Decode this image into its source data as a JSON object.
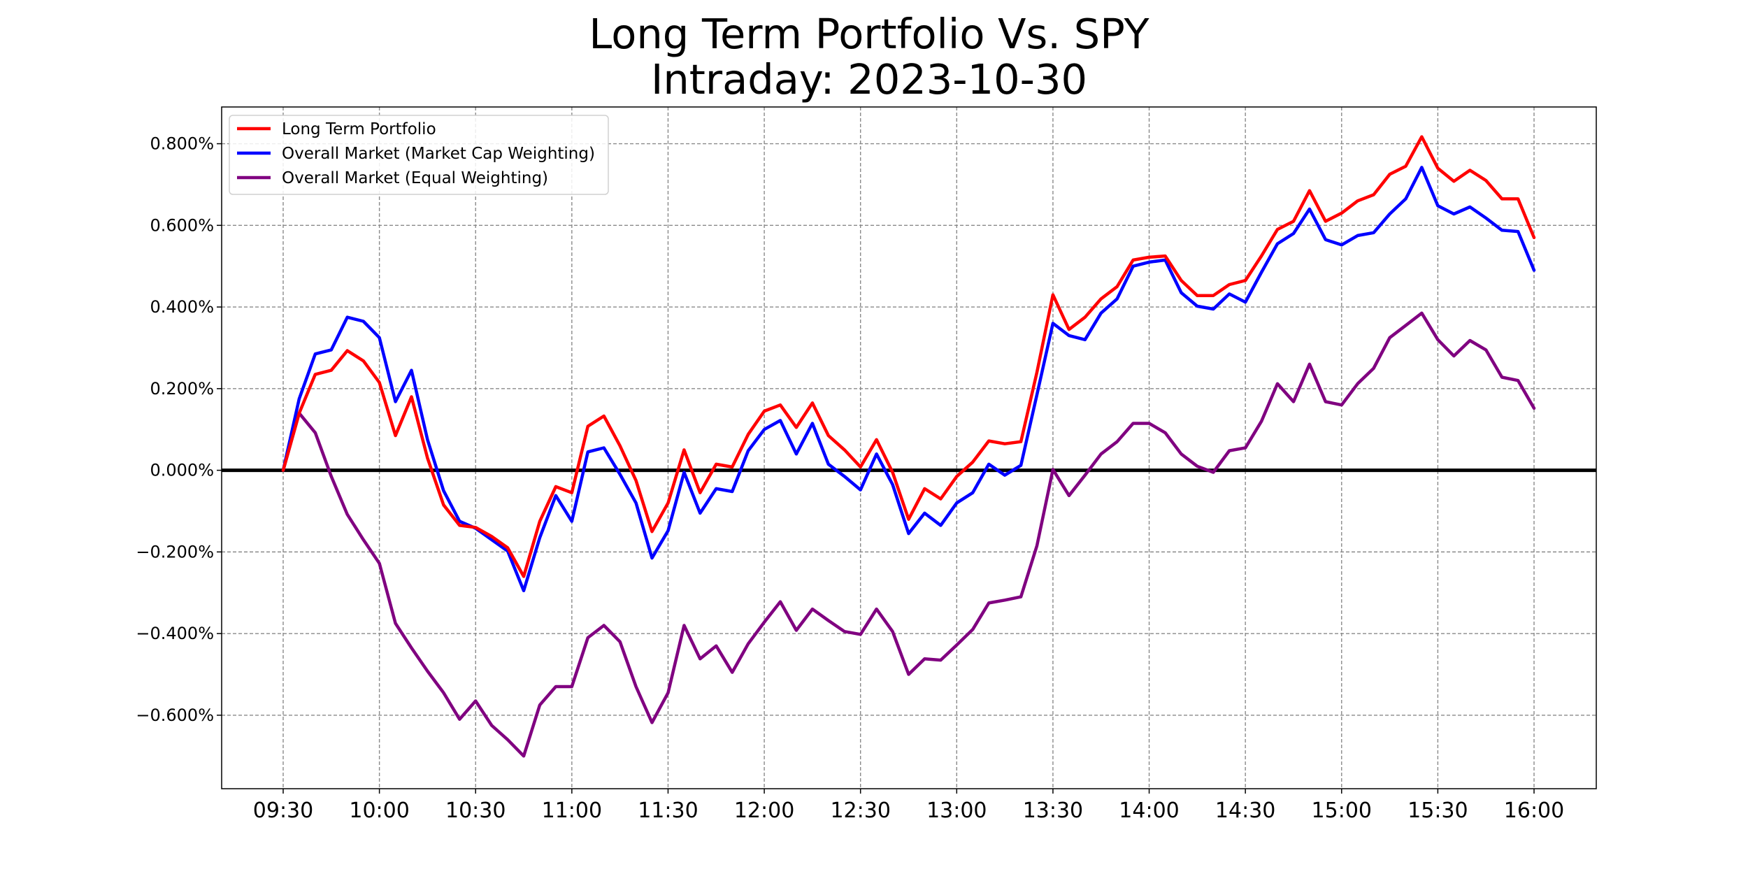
{
  "chart_data": {
    "type": "line",
    "title": [
      "Long Term Portfolio Vs. SPY",
      "Intraday: 2023-10-30"
    ],
    "xlabel": "",
    "ylabel": "",
    "ylim": [
      -0.78,
      0.89
    ],
    "grid": true,
    "legend_position": "upper-left",
    "x_ticks": [
      "09:30",
      "10:00",
      "10:30",
      "11:00",
      "11:30",
      "12:00",
      "12:30",
      "13:00",
      "13:30",
      "14:00",
      "14:30",
      "15:00",
      "15:30",
      "16:00"
    ],
    "y_ticks": [
      {
        "value": 0.8,
        "label": "0.800%"
      },
      {
        "value": 0.6,
        "label": "0.600%"
      },
      {
        "value": 0.4,
        "label": "0.400%"
      },
      {
        "value": 0.2,
        "label": "0.200%"
      },
      {
        "value": 0.0,
        "label": "0.000%"
      },
      {
        "value": -0.2,
        "label": "−0.200%"
      },
      {
        "value": -0.4,
        "label": "−0.400%"
      },
      {
        "value": -0.6,
        "label": "−0.600%"
      }
    ],
    "baseline": 0,
    "interval_minutes": 5,
    "start_time": "09:30",
    "series": [
      {
        "name": "Long Term Portfolio",
        "color": "#ff0000",
        "values": [
          0.0,
          0.14,
          0.235,
          0.245,
          0.293,
          0.268,
          0.215,
          0.085,
          0.18,
          0.03,
          -0.085,
          -0.135,
          -0.14,
          -0.162,
          -0.19,
          -0.26,
          -0.125,
          -0.04,
          -0.055,
          0.108,
          0.133,
          0.06,
          -0.025,
          -0.15,
          -0.08,
          0.05,
          -0.055,
          0.015,
          0.008,
          0.088,
          0.145,
          0.16,
          0.105,
          0.165,
          0.085,
          0.05,
          0.008,
          0.075,
          -0.005,
          -0.12,
          -0.045,
          -0.07,
          -0.015,
          0.02,
          0.072,
          0.065,
          0.07,
          0.24,
          0.43,
          0.345,
          0.375,
          0.42,
          0.45,
          0.515,
          0.522,
          0.525,
          0.465,
          0.428,
          0.428,
          0.455,
          0.465,
          0.525,
          0.59,
          0.61,
          0.685,
          0.61,
          0.63,
          0.66,
          0.675,
          0.725,
          0.745,
          0.817,
          0.74,
          0.708,
          0.735,
          0.71,
          0.665,
          0.665,
          0.57
        ]
      },
      {
        "name": "Overall Market (Market Cap Weighting)",
        "color": "#0000ff",
        "values": [
          0.0,
          0.175,
          0.285,
          0.295,
          0.375,
          0.365,
          0.325,
          0.168,
          0.245,
          0.075,
          -0.05,
          -0.125,
          -0.142,
          -0.17,
          -0.198,
          -0.295,
          -0.165,
          -0.062,
          -0.125,
          0.045,
          0.055,
          -0.01,
          -0.08,
          -0.215,
          -0.148,
          -0.005,
          -0.105,
          -0.045,
          -0.052,
          0.048,
          0.1,
          0.122,
          0.04,
          0.115,
          0.015,
          -0.015,
          -0.048,
          0.04,
          -0.035,
          -0.155,
          -0.105,
          -0.135,
          -0.08,
          -0.055,
          0.015,
          -0.012,
          0.012,
          0.185,
          0.36,
          0.33,
          0.32,
          0.385,
          0.42,
          0.5,
          0.51,
          0.515,
          0.435,
          0.402,
          0.395,
          0.432,
          0.412,
          0.485,
          0.555,
          0.58,
          0.64,
          0.565,
          0.552,
          0.575,
          0.582,
          0.628,
          0.665,
          0.742,
          0.648,
          0.628,
          0.645,
          0.618,
          0.588,
          0.585,
          0.49
        ]
      },
      {
        "name": "Overall Market (Equal Weighting)",
        "color": "#800080",
        "values": [
          0.0,
          0.14,
          0.092,
          -0.015,
          -0.108,
          -0.17,
          -0.228,
          -0.375,
          -0.435,
          -0.492,
          -0.545,
          -0.61,
          -0.565,
          -0.625,
          -0.66,
          -0.7,
          -0.575,
          -0.53,
          -0.53,
          -0.41,
          -0.38,
          -0.42,
          -0.53,
          -0.618,
          -0.545,
          -0.38,
          -0.462,
          -0.43,
          -0.495,
          -0.425,
          -0.372,
          -0.322,
          -0.392,
          -0.34,
          -0.368,
          -0.395,
          -0.402,
          -0.34,
          -0.395,
          -0.5,
          -0.462,
          -0.465,
          -0.428,
          -0.39,
          -0.325,
          -0.318,
          -0.31,
          -0.185,
          0.002,
          -0.062,
          -0.012,
          0.04,
          0.07,
          0.115,
          0.115,
          0.092,
          0.04,
          0.01,
          -0.005,
          0.048,
          0.055,
          0.12,
          0.212,
          0.168,
          0.26,
          0.168,
          0.16,
          0.212,
          0.25,
          0.325,
          0.355,
          0.385,
          0.32,
          0.28,
          0.318,
          0.295,
          0.228,
          0.22,
          0.152
        ]
      }
    ]
  }
}
